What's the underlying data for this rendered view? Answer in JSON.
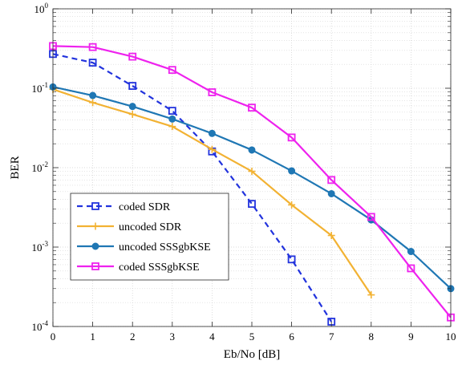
{
  "chart_data": {
    "type": "line",
    "title": "",
    "xlabel": "Eb/No [dB]",
    "ylabel": "BER",
    "xlim": [
      0,
      10
    ],
    "ylim": [
      0.0001,
      1
    ],
    "yscale": "log",
    "grid": true,
    "minor_grid": true,
    "legend_position": "lower-left",
    "x_ticks": [
      0,
      1,
      2,
      3,
      4,
      5,
      6,
      7,
      8,
      9,
      10
    ],
    "y_ticks": [
      {
        "value": 0.0001,
        "base": "10",
        "exp": "-4"
      },
      {
        "value": 0.001,
        "base": "10",
        "exp": "-3"
      },
      {
        "value": 0.01,
        "base": "10",
        "exp": "-2"
      },
      {
        "value": 0.1,
        "base": "10",
        "exp": "-1"
      },
      {
        "value": 1,
        "base": "10",
        "exp": "0"
      }
    ],
    "series": [
      {
        "name": "coded SDR",
        "color": "#2233dd",
        "line_style": "dashed",
        "marker": "square-hollow",
        "x": [
          0,
          1,
          2,
          3,
          4,
          5,
          6,
          7
        ],
        "y": [
          0.27,
          0.21,
          0.107,
          0.052,
          0.016,
          0.0035,
          0.0007,
          0.000115
        ]
      },
      {
        "name": "uncoded SDR",
        "color": "#f2b233",
        "line_style": "solid",
        "marker": "plus",
        "x": [
          0,
          1,
          2,
          3,
          4,
          5,
          6,
          7,
          8
        ],
        "y": [
          0.097,
          0.066,
          0.047,
          0.033,
          0.017,
          0.009,
          0.0034,
          0.0014,
          0.00025
        ]
      },
      {
        "name": "uncoded SSSgbKSE",
        "color": "#1f77b4",
        "line_style": "solid",
        "marker": "circle-filled",
        "x": [
          0,
          1,
          2,
          3,
          4,
          5,
          6,
          7,
          8,
          9,
          10
        ],
        "y": [
          0.104,
          0.081,
          0.059,
          0.041,
          0.027,
          0.0167,
          0.0091,
          0.0047,
          0.0022,
          0.00088,
          0.0003
        ]
      },
      {
        "name": "coded SSSgbKSE",
        "color": "#ee22ee",
        "line_style": "solid",
        "marker": "square-hollow",
        "x": [
          0,
          1,
          2,
          3,
          4,
          5,
          6,
          7,
          8,
          9,
          10
        ],
        "y": [
          0.34,
          0.33,
          0.25,
          0.17,
          0.089,
          0.057,
          0.024,
          0.007,
          0.0024,
          0.00054,
          0.00013
        ]
      }
    ]
  }
}
